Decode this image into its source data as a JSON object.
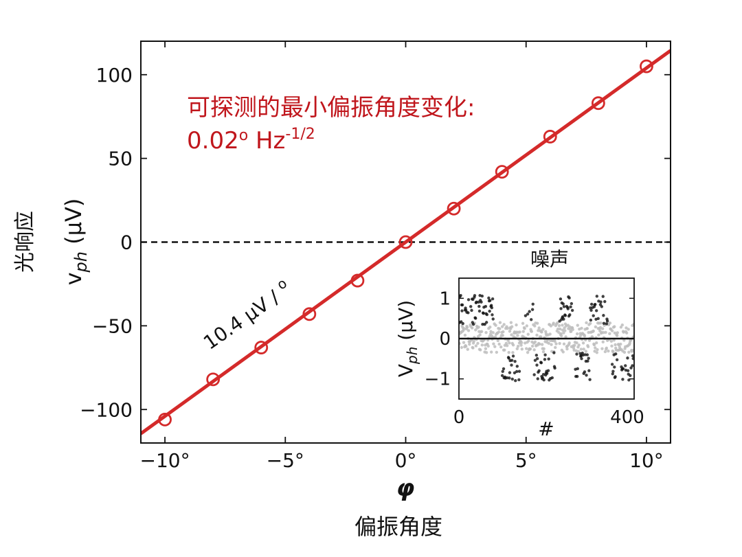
{
  "chart_data": [
    {
      "type": "scatter",
      "x": [
        -10,
        -8,
        -6,
        -4,
        -2,
        0,
        2,
        4,
        6,
        8,
        10
      ],
      "series": [
        {
          "values": [
            -106,
            -82,
            -63,
            -43,
            -23,
            0,
            20,
            42,
            63,
            83,
            105
          ],
          "color": "#d42a2a",
          "marker": "open-circle"
        }
      ],
      "fit": {
        "slope": 10.4,
        "intercept": 0,
        "color": "#d42a2a"
      },
      "zero_line": {
        "y": 0,
        "style": "dashed"
      },
      "xlim": [
        -11,
        11
      ],
      "ylim": [
        -120,
        120
      ],
      "xticks": [
        -10,
        -5,
        0,
        5,
        10
      ],
      "xtick_labels": [
        "−10°",
        "−5°",
        "0°",
        "5°",
        "10°"
      ],
      "yticks": [
        -100,
        -50,
        0,
        50,
        100
      ],
      "ytick_labels": [
        "−100",
        "−50",
        "0",
        "50",
        "100"
      ],
      "xlabel": "φ",
      "xlabel_cn": "偏振角度",
      "ylabel": "vph (μV)",
      "ylabel_cn": "光响应",
      "annotations": {
        "slope_label": "10.4 μV / o",
        "sensitivity_title": "可探测的最小偏振角度变化:",
        "sensitivity_value": "0.02o Hz-1/2"
      },
      "grid": false
    },
    {
      "type": "scatter",
      "title": "噪声",
      "xlabel": "#",
      "ylabel": "Vph (μV)",
      "xlim": [
        0,
        400
      ],
      "ylim": [
        -1.5,
        1.5
      ],
      "xticks": [
        0,
        400
      ],
      "yticks": [
        -1,
        0,
        1
      ],
      "ytick_labels": [
        "−1",
        "0",
        "1"
      ],
      "series": [
        {
          "name": "",
          "color": "#bdbdbd",
          "band": [
            -0.35,
            0.4
          ]
        },
        {
          "name": "",
          "color": "#111111",
          "band": [
            -1.1,
            1.2
          ]
        }
      ],
      "zero_line": {
        "y": 0,
        "style": "solid"
      }
    }
  ]
}
